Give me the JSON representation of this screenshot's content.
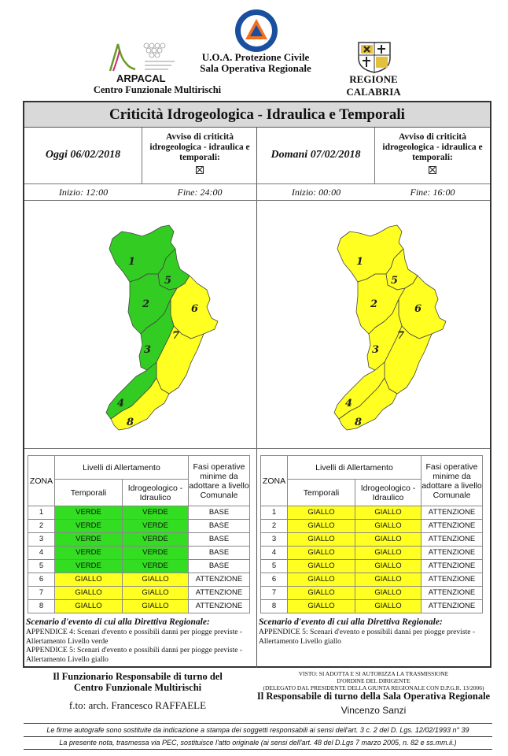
{
  "header": {
    "arpacal_name": "ARPACAL",
    "arpacal_subtitle": "Centro Funzionale Multirischi",
    "uoa_line1": "U.O.A. Protezione Civile",
    "uoa_line2": "Sala Operativa Regionale",
    "regione_name": "REGIONE CALABRIA",
    "pc_logo_text": "PROTEZIONE CIVILE"
  },
  "title": "Criticità Idrogeologica - Idraulica e Temporali",
  "today": {
    "date": "Oggi 06/02/2018",
    "avviso": "Avviso di criticità idrogeologica - idraulica e temporali:",
    "inizio": "Inizio: 12:00",
    "fine": "Fine: 24:00",
    "zone_colors": [
      "#33cc22",
      "#33cc22",
      "#33cc22",
      "#33cc22",
      "#33cc22",
      "#ffff22",
      "#ffff22",
      "#ffff22"
    ],
    "table": {
      "zona_header": "ZONA",
      "livelli_header": "Livelli di Allertamento",
      "temporali_header": "Temporali",
      "idro_header": "Idrogeologico - Idraulico",
      "fasi_header": "Fasi operative minime da adottare a livello Comunale",
      "rows": [
        {
          "zona": "1",
          "temp": "VERDE",
          "idro": "VERDE",
          "fase": "BASE"
        },
        {
          "zona": "2",
          "temp": "VERDE",
          "idro": "VERDE",
          "fase": "BASE"
        },
        {
          "zona": "3",
          "temp": "VERDE",
          "idro": "VERDE",
          "fase": "BASE"
        },
        {
          "zona": "4",
          "temp": "VERDE",
          "idro": "VERDE",
          "fase": "BASE"
        },
        {
          "zona": "5",
          "temp": "VERDE",
          "idro": "VERDE",
          "fase": "BASE"
        },
        {
          "zona": "6",
          "temp": "GIALLO",
          "idro": "GIALLO",
          "fase": "ATTENZIONE"
        },
        {
          "zona": "7",
          "temp": "GIALLO",
          "idro": "GIALLO",
          "fase": "ATTENZIONE"
        },
        {
          "zona": "8",
          "temp": "GIALLO",
          "idro": "GIALLO",
          "fase": "ATTENZIONE"
        }
      ]
    },
    "scenario_title": "Scenario d'evento di cui alla Direttiva Regionale:",
    "scenario_lines": [
      "APPENDICE 4: Scenari d'evento e possibili danni per piogge previste - Allertamento Livello verde",
      "APPENDICE 5: Scenari d'evento e possibili danni per piogge previste - Allertamento Livello giallo"
    ]
  },
  "tomorrow": {
    "date": "Domani 07/02/2018",
    "avviso": "Avviso di criticità idrogeologica - idraulica e temporali:",
    "inizio": "Inizio: 00:00",
    "fine": "Fine: 16:00",
    "zone_colors": [
      "#ffff22",
      "#ffff22",
      "#ffff22",
      "#ffff22",
      "#ffff22",
      "#ffff22",
      "#ffff22",
      "#ffff22"
    ],
    "table": {
      "zona_header": "ZONA",
      "livelli_header": "Livelli di Allertamento",
      "temporali_header": "Temporali",
      "idro_header": "Idrogeologico - Idraulico",
      "fasi_header": "Fasi operative minime da adottare a livello Comunale",
      "rows": [
        {
          "zona": "1",
          "temp": "GIALLO",
          "idro": "GIALLO",
          "fase": "ATTENZIONE"
        },
        {
          "zona": "2",
          "temp": "GIALLO",
          "idro": "GIALLO",
          "fase": "ATTENZIONE"
        },
        {
          "zona": "3",
          "temp": "GIALLO",
          "idro": "GIALLO",
          "fase": "ATTENZIONE"
        },
        {
          "zona": "4",
          "temp": "GIALLO",
          "idro": "GIALLO",
          "fase": "ATTENZIONE"
        },
        {
          "zona": "5",
          "temp": "GIALLO",
          "idro": "GIALLO",
          "fase": "ATTENZIONE"
        },
        {
          "zona": "6",
          "temp": "GIALLO",
          "idro": "GIALLO",
          "fase": "ATTENZIONE"
        },
        {
          "zona": "7",
          "temp": "GIALLO",
          "idro": "GIALLO",
          "fase": "ATTENZIONE"
        },
        {
          "zona": "8",
          "temp": "GIALLO",
          "idro": "GIALLO",
          "fase": "ATTENZIONE"
        }
      ]
    },
    "scenario_title": "Scenario d'evento di cui alla Direttiva Regionale:",
    "scenario_lines": [
      "APPENDICE 5: Scenari d'evento e possibili danni per piogge previste - Allertamento Livello giallo"
    ]
  },
  "footer": {
    "funzionario_line1": "Il Funzionario Responsabile di turno del",
    "funzionario_line2": "Centro Funzionale Multirischi",
    "funzionario_name": "f.to: arch. Francesco RAFFAELE",
    "visto_line1": "VISTO: SI ADOTTA E SI AUTORIZZA LA TRASMISSIONE",
    "visto_line2": "D'ORDINE DEL DIRIGENTE",
    "visto_line3": "(DELEGATO DAL PRESIDENTE DELLA GIUNTA REGIONALE CON D.P.G.R. 13/2006)",
    "responsabile": "Il Responsabile di turno della Sala Operativa Regionale",
    "responsabile_name": "Vincenzo Sanzi",
    "note1": "Le firme autografe sono sostituite da indicazione a stampa dei soggetti responsabili ai sensi dell'art. 3 c. 2 del D. Lgs. 12/02/1993 n° 39",
    "note2": "La presente nota, trasmessa via PEC, sostituisce l'atto originale (ai sensi dell'art. 48 del D.Lgs 7 marzo 2005, n. 82 e ss.mm.ii.)"
  },
  "colors": {
    "verde": "#33dd22",
    "giallo": "#ffff22",
    "title_bg": "#d9d9d9"
  }
}
